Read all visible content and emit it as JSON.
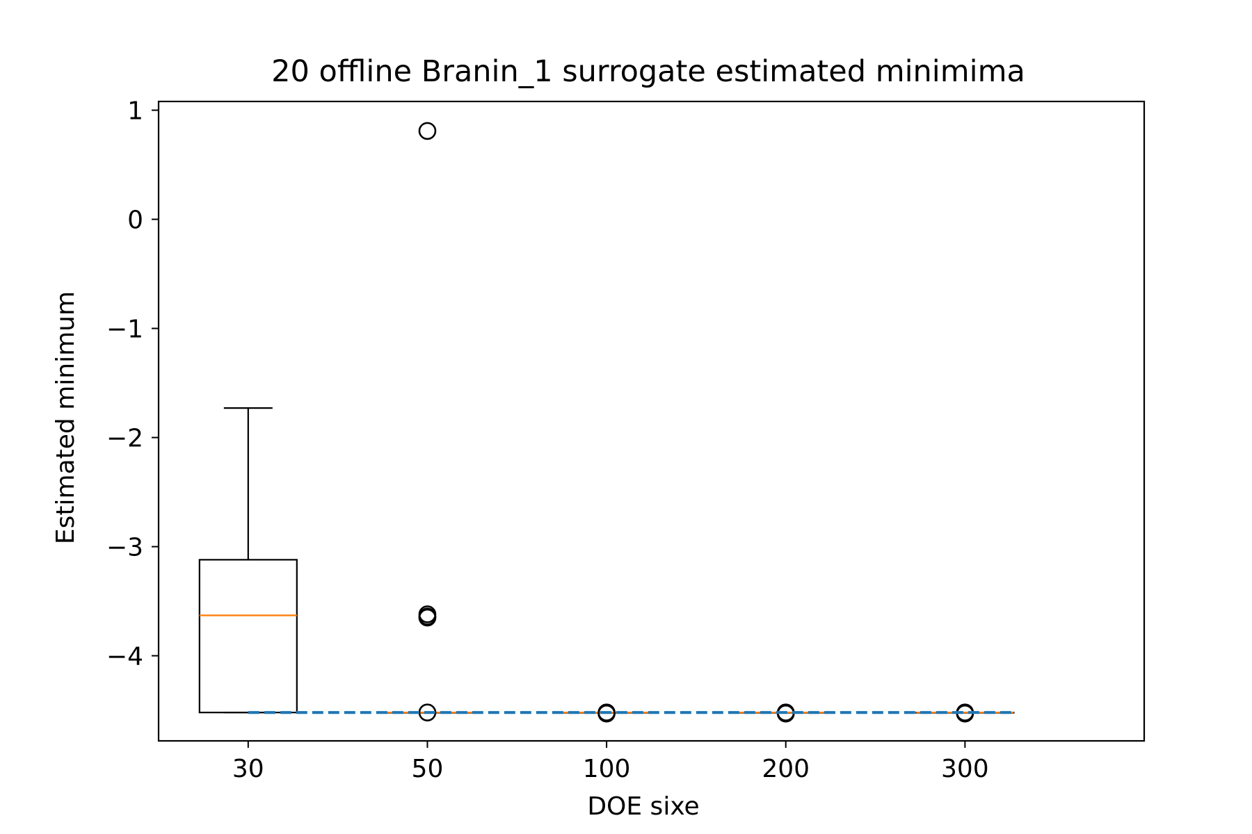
{
  "chart_data": {
    "type": "box",
    "title": "20 offline Branin_1 surrogate estimated minimima",
    "xlabel": "DOE sixe",
    "ylabel": "Estimated minimum",
    "categories": [
      "30",
      "50",
      "100",
      "200",
      "300"
    ],
    "ylim": [
      -4.78,
      1.08
    ],
    "yticks": [
      1,
      0,
      -1,
      -2,
      -3,
      -4
    ],
    "ytick_labels": [
      "1",
      "0",
      "−1",
      "−2",
      "−3",
      "−4"
    ],
    "boxes": [
      {
        "category": "30",
        "whisker_low": -4.52,
        "q1": -4.52,
        "median": -3.63,
        "q3": -3.12,
        "whisker_high": -1.73,
        "fliers": []
      },
      {
        "category": "50",
        "whisker_low": -4.52,
        "q1": -4.52,
        "median": -4.52,
        "q3": -4.52,
        "whisker_high": -4.52,
        "fliers": [
          0.81,
          -3.62,
          -3.64,
          -3.65,
          -4.52
        ]
      },
      {
        "category": "100",
        "whisker_low": -4.52,
        "q1": -4.52,
        "median": -4.52,
        "q3": -4.52,
        "whisker_high": -4.52,
        "fliers": [
          -4.52,
          -4.53
        ]
      },
      {
        "category": "200",
        "whisker_low": -4.52,
        "q1": -4.52,
        "median": -4.52,
        "q3": -4.52,
        "whisker_high": -4.52,
        "fliers": [
          -4.52,
          -4.53
        ]
      },
      {
        "category": "300",
        "whisker_low": -4.52,
        "q1": -4.52,
        "median": -4.52,
        "q3": -4.52,
        "whisker_high": -4.52,
        "fliers": [
          -4.52,
          -4.53
        ]
      }
    ],
    "reference_line": {
      "value": -4.52,
      "style": "dashed"
    },
    "grid": false,
    "colors": {
      "box": "#000000",
      "median": "#ff7f0e",
      "reference": "#1f77b4",
      "flier": "#000000"
    }
  }
}
